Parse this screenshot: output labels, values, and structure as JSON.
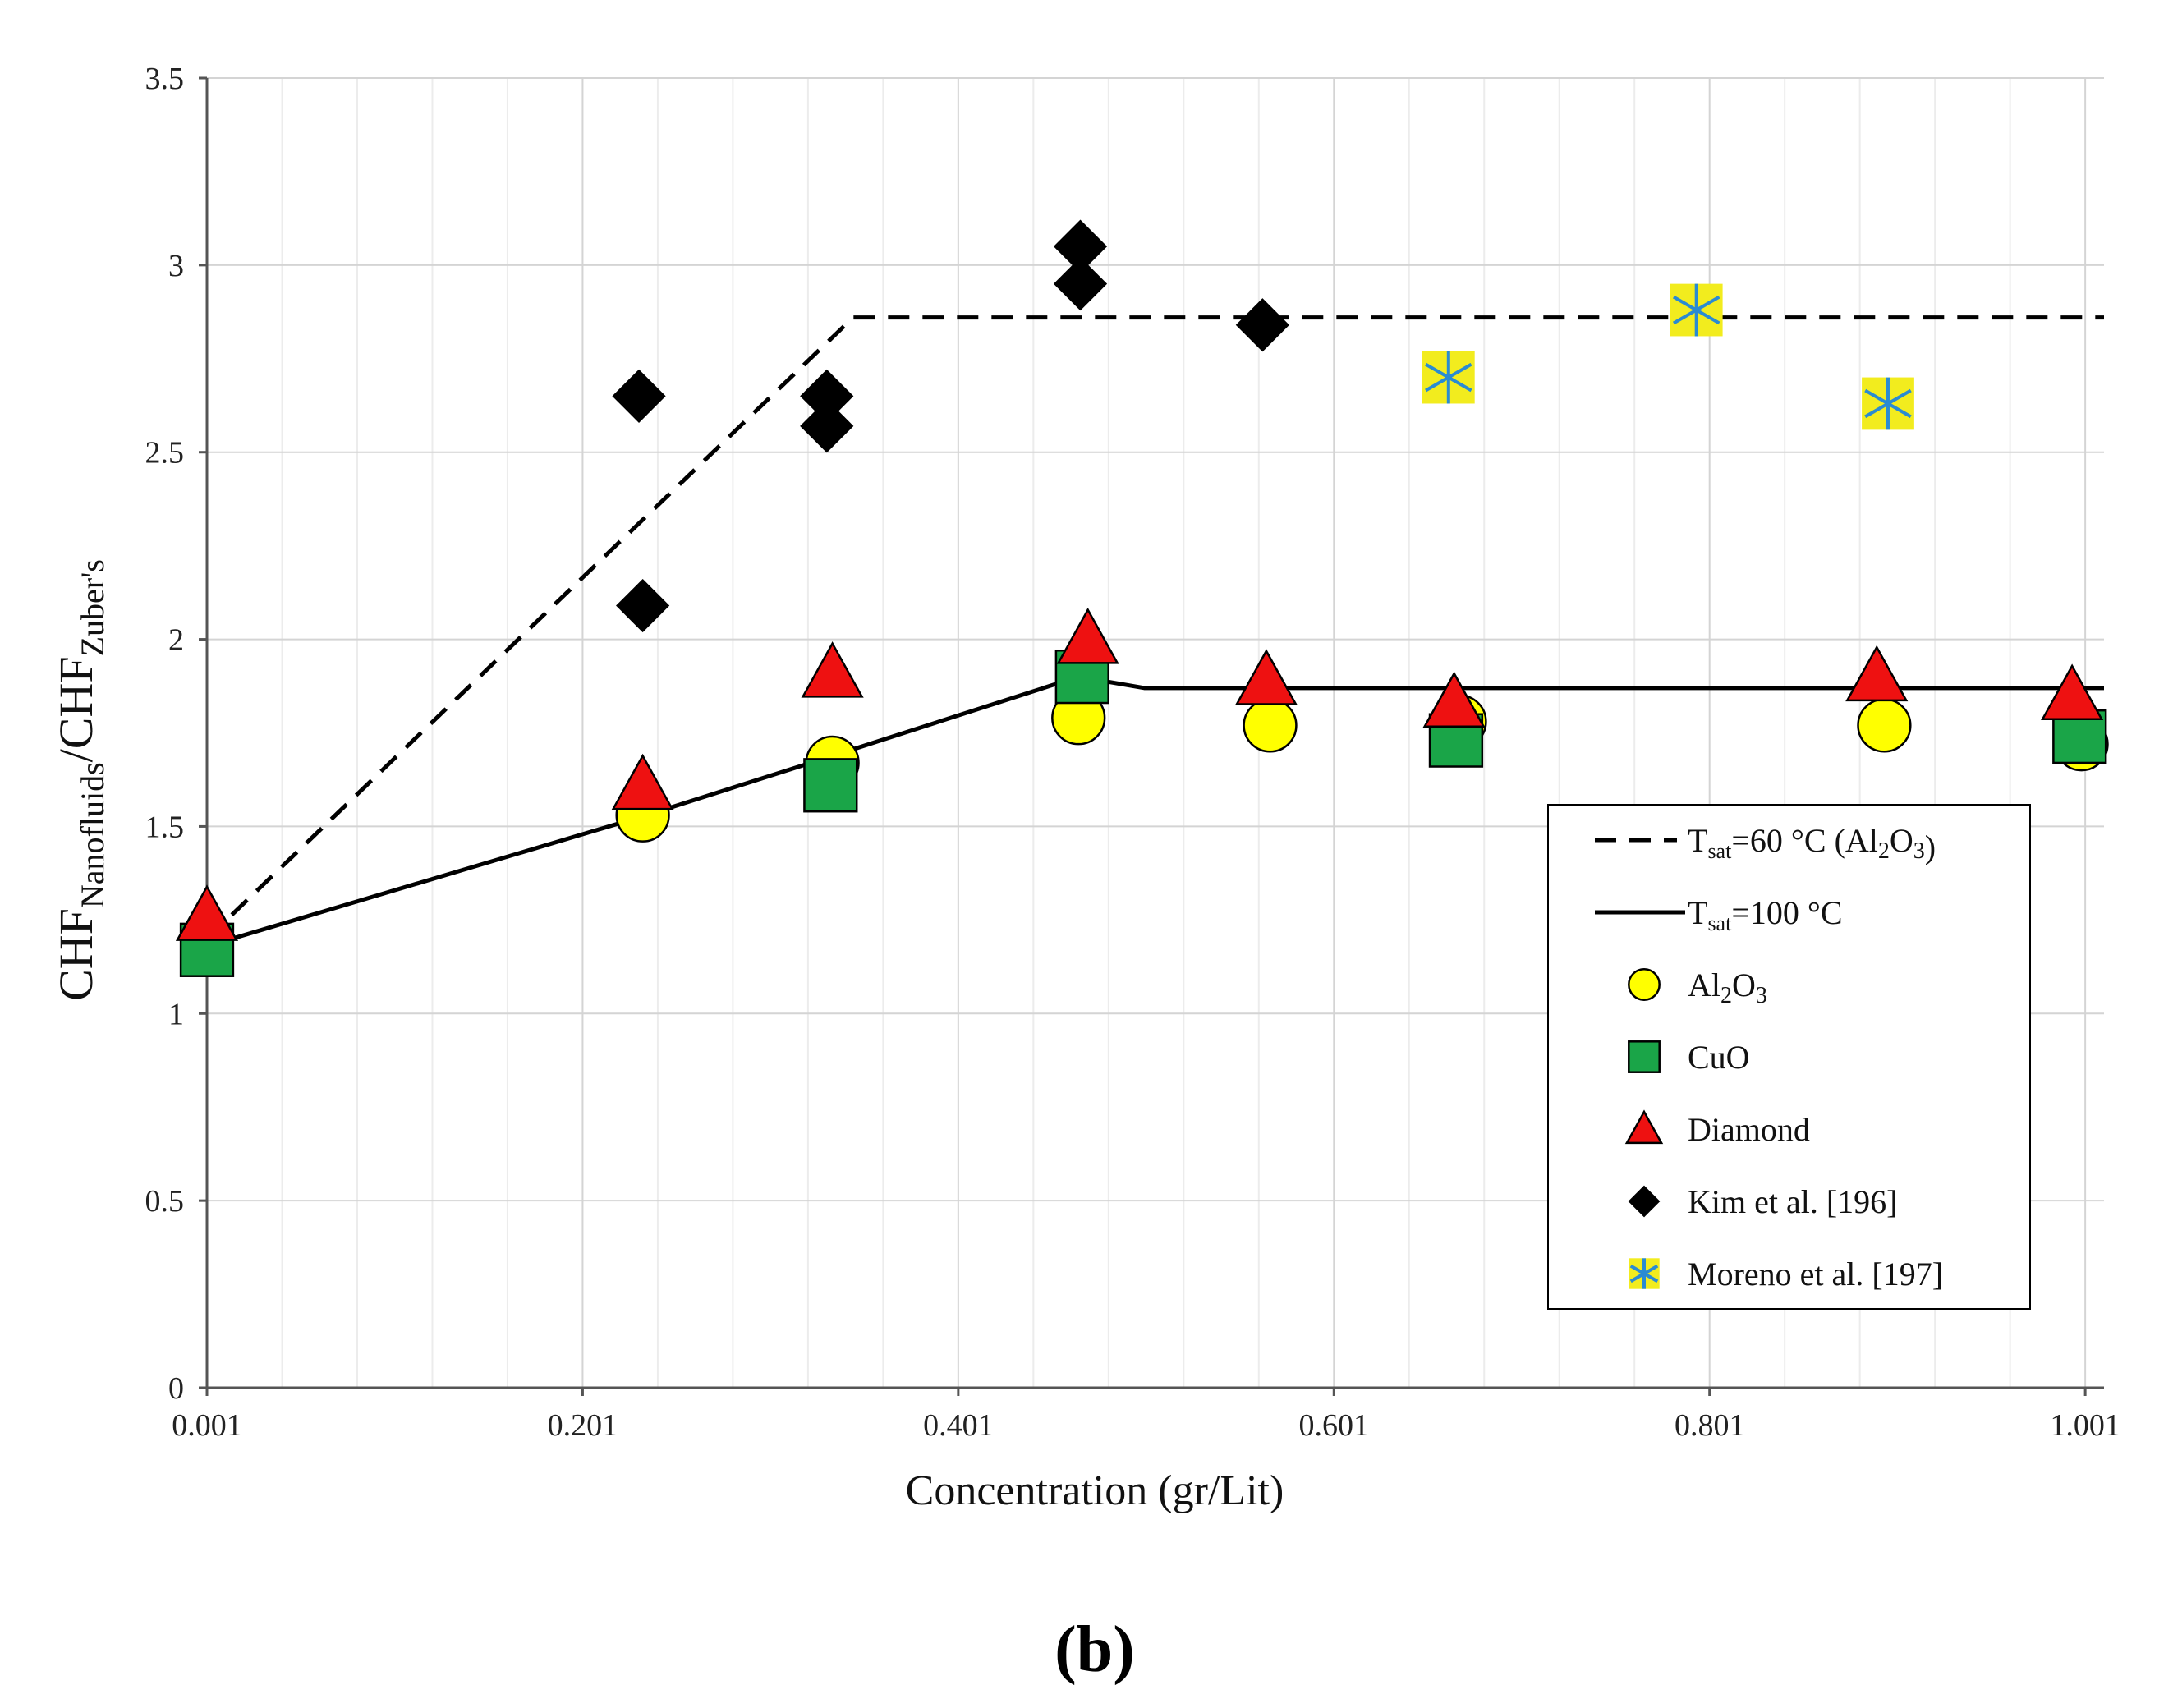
{
  "panel_label": "(b)",
  "chart_data": {
    "type": "scatter",
    "xlabel": "Concentration  (gr/Lit)",
    "ylabel": {
      "base1": "CHF",
      "sub1": "Nanofluids",
      "sep": "/",
      "base2": "CHF",
      "sub2": "Zuber's"
    },
    "xlim": [
      0.001,
      1.011
    ],
    "ylim": [
      0,
      3.5
    ],
    "xticks": [
      0.001,
      0.201,
      0.401,
      0.601,
      0.801,
      1.001
    ],
    "xtick_labels": [
      "0.001",
      "0.201",
      "0.401",
      "0.601",
      "0.801",
      "1.001"
    ],
    "yticks": [
      0,
      0.5,
      1,
      1.5,
      2,
      2.5,
      3,
      3.5
    ],
    "ytick_labels": [
      "0",
      "0.5",
      "1",
      "1.5",
      "2",
      "2.5",
      "3",
      "3.5"
    ],
    "grid": true,
    "legend_position": "lower-right",
    "lines": [
      {
        "id": "tsat60",
        "style": "dashed",
        "label": {
          "base": "T",
          "sub": "sat",
          "rest": "=60 °C (",
          "formula": "Al2O3",
          "close": ")"
        },
        "x": [
          0.001,
          0.345,
          1.011
        ],
        "y": [
          1.2,
          2.86,
          2.86
        ]
      },
      {
        "id": "tsat100",
        "style": "solid",
        "label": {
          "base": "T",
          "sub": "sat",
          "rest": "=100 °C"
        },
        "x": [
          0.001,
          0.235,
          0.335,
          0.465,
          0.5,
          1.011
        ],
        "y": [
          1.18,
          1.53,
          1.69,
          1.9,
          1.87,
          1.87
        ]
      }
    ],
    "series": [
      {
        "name": "Al2O3",
        "label": {
          "formula": "Al2O3"
        },
        "marker": "circle",
        "fill": "#ffff00",
        "x": [
          0.233,
          0.334,
          0.465,
          0.567,
          0.668,
          0.894,
          0.999
        ],
        "y": [
          1.53,
          1.67,
          1.79,
          1.77,
          1.78,
          1.77,
          1.72
        ]
      },
      {
        "name": "CuO",
        "label": {
          "text": "CuO"
        },
        "marker": "square",
        "fill": "#1aa548",
        "x": [
          0.001,
          0.333,
          0.467,
          0.666,
          0.998
        ],
        "y": [
          1.17,
          1.61,
          1.9,
          1.73,
          1.74
        ]
      },
      {
        "name": "Diamond",
        "label": {
          "text": "Diamond"
        },
        "marker": "triangle",
        "fill": "#ee1111",
        "x": [
          0.001,
          0.233,
          0.334,
          0.47,
          0.565,
          0.665,
          0.89,
          0.994
        ],
        "y": [
          1.26,
          1.61,
          1.91,
          2.0,
          1.89,
          1.83,
          1.9,
          1.85
        ]
      },
      {
        "name": "Kim et al. [196]",
        "label": {
          "text": "Kim et al. [196]"
        },
        "marker": "diamond",
        "fill": "#000000",
        "x": [
          0.231,
          0.233,
          0.331,
          0.331,
          0.466,
          0.466,
          0.563
        ],
        "y": [
          2.65,
          2.09,
          2.65,
          2.57,
          3.05,
          2.95,
          2.84
        ]
      },
      {
        "name": "Moreno et al. [197]",
        "label": {
          "text": "Moreno et al. [197]"
        },
        "marker": "asterisk",
        "fill": "#f2ec1e",
        "stroke": "#2a8bd2",
        "x": [
          0.662,
          0.794,
          0.896
        ],
        "y": [
          2.7,
          2.88,
          2.63
        ]
      }
    ]
  }
}
